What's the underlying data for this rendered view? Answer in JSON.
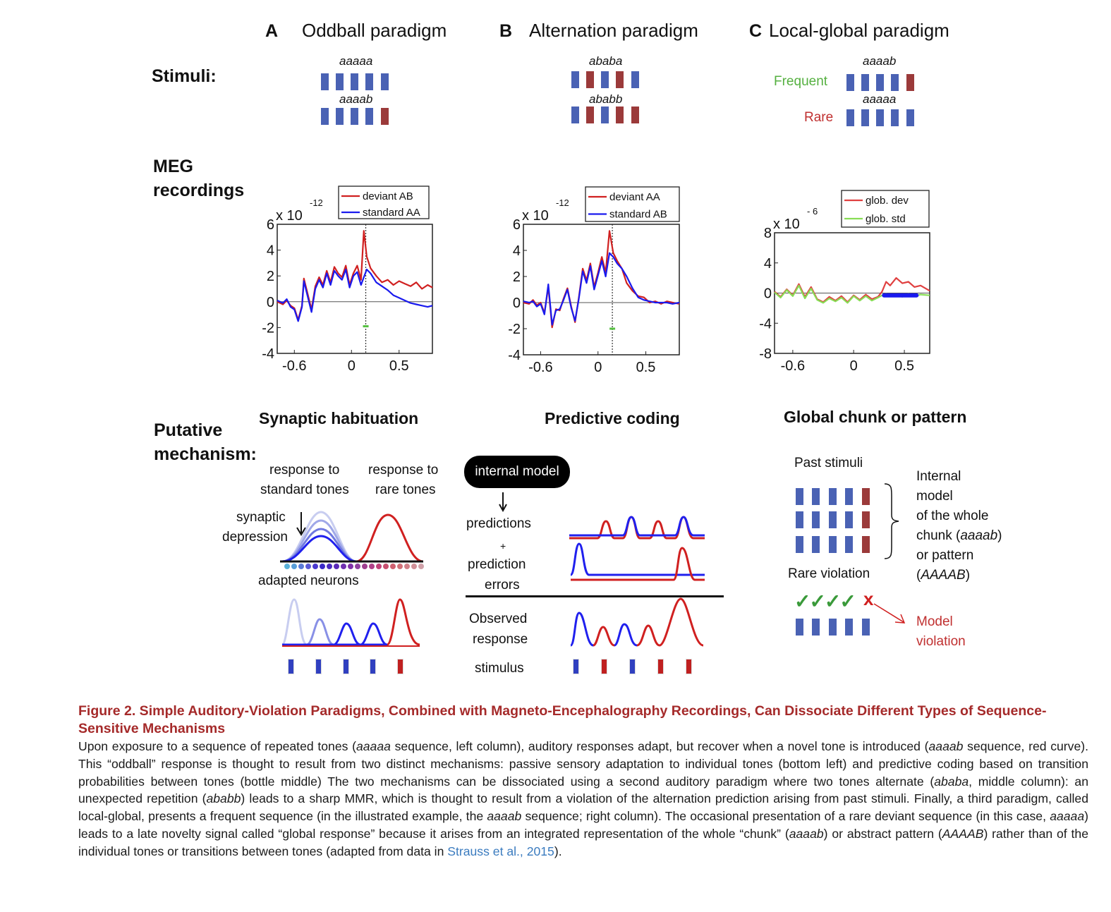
{
  "panels": {
    "A": {
      "letter": "A",
      "title": "Oddball paradigm",
      "mechanism": "Synaptic habituation"
    },
    "B": {
      "letter": "B",
      "title": "Alternation paradigm",
      "mechanism": "Predictive coding"
    },
    "C": {
      "letter": "C",
      "title": "Local-global paradigm",
      "mechanism": "Global chunk or pattern"
    }
  },
  "row_labels": {
    "stimuli": "Stimuli:",
    "meg_line1": "MEG",
    "meg_line2": "recordings",
    "mech_line1": "Putative",
    "mech_line2": "mechanism:"
  },
  "stimuli": {
    "A": [
      {
        "label": "aaaaa",
        "tones": "aaaaa"
      },
      {
        "label": "aaaab",
        "tones": "aaaab"
      }
    ],
    "B": [
      {
        "label": "ababa",
        "tones": "ababa"
      },
      {
        "label": "ababb",
        "tones": "ababb"
      }
    ],
    "C": [
      {
        "label": "aaaab",
        "tones": "aaaab",
        "freq": "Frequent"
      },
      {
        "label": "aaaaa",
        "tones": "aaaaa",
        "freq": "Rare"
      }
    ]
  },
  "colors": {
    "tone_a": "#4a62b4",
    "tone_b": "#9b3a3a",
    "red": "#d02020",
    "blue": "#1a1aee",
    "green": "#55c040",
    "caption_title": "#a52a2a",
    "link": "#3a7bbf"
  },
  "chart_data": [
    {
      "type": "line",
      "panel": "A",
      "exponent_base": "x 10",
      "exponent": "-12",
      "xticks": [
        "-0.6",
        "0",
        "0.5"
      ],
      "xtick_values": [
        -0.6,
        0,
        0.5
      ],
      "yticks": [
        "6",
        "4",
        "2",
        "0",
        "-2",
        "-4"
      ],
      "xlim": [
        -0.78,
        0.85
      ],
      "ylim": [
        -4,
        6
      ],
      "marker_x": 0.15,
      "series": [
        {
          "name": "deviant AB",
          "color": "#d02020",
          "x": [
            -0.78,
            -0.72,
            -0.68,
            -0.64,
            -0.6,
            -0.56,
            -0.52,
            -0.5,
            -0.46,
            -0.42,
            -0.38,
            -0.34,
            -0.3,
            -0.26,
            -0.22,
            -0.18,
            -0.14,
            -0.1,
            -0.06,
            -0.02,
            0.02,
            0.06,
            0.1,
            0.13,
            0.16,
            0.2,
            0.26,
            0.32,
            0.38,
            0.44,
            0.5,
            0.56,
            0.62,
            0.68,
            0.74,
            0.8,
            0.85
          ],
          "y": [
            0.0,
            -0.2,
            0.1,
            -0.3,
            -0.5,
            -1.4,
            -0.3,
            1.8,
            0.6,
            -0.6,
            1.2,
            1.9,
            1.3,
            2.4,
            1.5,
            2.7,
            2.2,
            1.9,
            2.8,
            1.3,
            2.2,
            2.8,
            1.7,
            5.5,
            3.5,
            2.6,
            2.0,
            1.5,
            1.7,
            1.3,
            1.6,
            1.4,
            1.2,
            1.5,
            1.0,
            1.3,
            1.1
          ]
        },
        {
          "name": "standard AA",
          "color": "#1a1aee",
          "x": [
            -0.78,
            -0.72,
            -0.68,
            -0.64,
            -0.6,
            -0.56,
            -0.52,
            -0.5,
            -0.46,
            -0.42,
            -0.38,
            -0.34,
            -0.3,
            -0.26,
            -0.22,
            -0.18,
            -0.14,
            -0.1,
            -0.06,
            -0.02,
            0.02,
            0.06,
            0.1,
            0.13,
            0.16,
            0.2,
            0.26,
            0.32,
            0.38,
            0.44,
            0.5,
            0.56,
            0.62,
            0.68,
            0.74,
            0.8,
            0.85
          ],
          "y": [
            0.1,
            -0.1,
            0.2,
            -0.4,
            -0.6,
            -1.5,
            -0.4,
            1.6,
            0.4,
            -0.8,
            1.0,
            1.7,
            1.1,
            2.2,
            1.3,
            2.4,
            2.0,
            1.7,
            2.5,
            1.1,
            2.0,
            2.3,
            1.3,
            1.9,
            2.5,
            2.2,
            1.5,
            1.2,
            0.9,
            0.5,
            0.3,
            0.1,
            -0.1,
            -0.2,
            -0.3,
            -0.4,
            -0.3
          ]
        }
      ],
      "green_marker_y": -1.9
    },
    {
      "type": "line",
      "panel": "B",
      "exponent_base": "x 10",
      "exponent": "-12",
      "xticks": [
        "-0.6",
        "0",
        "0.5"
      ],
      "xtick_values": [
        -0.6,
        0,
        0.5
      ],
      "yticks": [
        "6",
        "4",
        "2",
        "0",
        "-2",
        "-4"
      ],
      "xlim": [
        -0.78,
        0.85
      ],
      "ylim": [
        -4,
        6
      ],
      "marker_x": 0.15,
      "series": [
        {
          "name": "deviant AA",
          "color": "#d02020",
          "x": [
            -0.78,
            -0.72,
            -0.68,
            -0.64,
            -0.6,
            -0.56,
            -0.52,
            -0.48,
            -0.44,
            -0.4,
            -0.36,
            -0.32,
            -0.28,
            -0.24,
            -0.2,
            -0.16,
            -0.12,
            -0.08,
            -0.04,
            0.0,
            0.04,
            0.08,
            0.12,
            0.16,
            0.2,
            0.25,
            0.3,
            0.36,
            0.42,
            0.48,
            0.54,
            0.6,
            0.66,
            0.72,
            0.78,
            0.85
          ],
          "y": [
            0.0,
            -0.1,
            0.2,
            -0.2,
            0.0,
            -0.8,
            1.2,
            -1.9,
            -0.5,
            -0.6,
            0.3,
            1.1,
            -0.3,
            -1.5,
            0.4,
            2.6,
            1.7,
            3.0,
            1.2,
            2.3,
            3.5,
            2.3,
            5.5,
            3.8,
            3.2,
            2.6,
            1.5,
            0.9,
            0.5,
            0.4,
            0.0,
            0.1,
            -0.1,
            0.1,
            0.0,
            -0.1
          ]
        },
        {
          "name": "standard AB",
          "color": "#1a1aee",
          "x": [
            -0.78,
            -0.72,
            -0.68,
            -0.64,
            -0.6,
            -0.56,
            -0.52,
            -0.48,
            -0.44,
            -0.4,
            -0.36,
            -0.32,
            -0.28,
            -0.24,
            -0.2,
            -0.16,
            -0.12,
            -0.08,
            -0.04,
            0.0,
            0.04,
            0.08,
            0.12,
            0.16,
            0.2,
            0.25,
            0.3,
            0.36,
            0.42,
            0.48,
            0.54,
            0.6,
            0.66,
            0.72,
            0.78,
            0.85
          ],
          "y": [
            0.1,
            0.0,
            0.1,
            -0.3,
            -0.1,
            -0.9,
            1.4,
            -1.7,
            -0.6,
            -0.5,
            0.2,
            1.0,
            -0.4,
            -1.4,
            0.3,
            2.4,
            1.5,
            2.8,
            1.0,
            2.1,
            3.2,
            2.0,
            3.8,
            3.5,
            3.0,
            2.6,
            2.0,
            1.1,
            0.4,
            0.2,
            0.1,
            0.0,
            0.0,
            0.0,
            -0.1,
            0.0
          ]
        }
      ],
      "green_marker_y": -2.0
    },
    {
      "type": "line",
      "panel": "C",
      "exponent_base": "x 10",
      "exponent": "- 6",
      "xticks": [
        "-0.6",
        "0",
        "0.5"
      ],
      "xtick_values": [
        -0.6,
        0,
        0.5
      ],
      "yticks": [
        "8",
        "4",
        "0",
        "-4",
        "-8"
      ],
      "xlim": [
        -0.78,
        0.75
      ],
      "ylim": [
        -8,
        8
      ],
      "series": [
        {
          "name": "glob. dev",
          "color": "#e04040",
          "x": [
            -0.78,
            -0.72,
            -0.66,
            -0.6,
            -0.54,
            -0.48,
            -0.42,
            -0.36,
            -0.3,
            -0.24,
            -0.18,
            -0.12,
            -0.06,
            0.0,
            0.06,
            0.12,
            0.18,
            0.24,
            0.28,
            0.32,
            0.36,
            0.42,
            0.48,
            0.54,
            0.6,
            0.66,
            0.75
          ],
          "y": [
            0.2,
            -0.5,
            0.5,
            -0.3,
            1.2,
            -0.5,
            0.8,
            -0.8,
            -1.2,
            -0.5,
            -1.0,
            -0.4,
            -1.2,
            -0.3,
            -0.9,
            -0.2,
            -0.8,
            -0.5,
            0.2,
            1.5,
            1.0,
            2.0,
            1.3,
            1.5,
            0.8,
            1.0,
            0.3
          ]
        },
        {
          "name": "glob. std",
          "color": "#88dd55",
          "x": [
            -0.78,
            -0.72,
            -0.66,
            -0.6,
            -0.54,
            -0.48,
            -0.42,
            -0.36,
            -0.3,
            -0.24,
            -0.18,
            -0.12,
            -0.06,
            0.0,
            0.06,
            0.12,
            0.18,
            0.24,
            0.28,
            0.32,
            0.36,
            0.42,
            0.48,
            0.54,
            0.6,
            0.66,
            0.75
          ],
          "y": [
            0.1,
            -0.6,
            0.4,
            -0.4,
            1.0,
            -0.7,
            0.6,
            -0.9,
            -1.3,
            -0.7,
            -1.1,
            -0.6,
            -1.3,
            -0.4,
            -1.0,
            -0.4,
            -1.0,
            -0.6,
            -0.3,
            -0.1,
            -0.4,
            -0.2,
            -0.5,
            -0.1,
            -0.4,
            -0.2,
            -0.3
          ]
        }
      ],
      "significance_bar": {
        "x0": 0.3,
        "x1": 0.62,
        "y": -0.3
      }
    }
  ],
  "mechA": {
    "resp_standard_1": "response to",
    "resp_standard_2": "standard tones",
    "resp_rare_1": "response to",
    "resp_rare_2": "rare tones",
    "synaptic_1": "synaptic",
    "synaptic_2": "depression",
    "adapted": "adapted neurons",
    "stim_tones": "aaaab"
  },
  "mechB": {
    "internal_model": "internal model",
    "predictions": "predictions",
    "plus": "+",
    "prediction_1": "prediction",
    "prediction_2": "errors",
    "observed_1": "Observed",
    "observed_2": "response",
    "stimulus": "stimulus",
    "stim_tones": "ababb"
  },
  "mechC": {
    "past_stimuli": "Past stimuli",
    "internal_1": "Internal",
    "internal_2": "model",
    "internal_3": "of the whole",
    "internal_4a": "chunk (",
    "internal_4b": "aaaab",
    "internal_4c": ")",
    "internal_5": "or pattern",
    "internal_6a": "(",
    "internal_6b": "AAAAB",
    "internal_6c": ")",
    "rare_violation": "Rare violation",
    "checks": "✓✓✓✓",
    "cross": "x",
    "model_violation_1": "Model",
    "model_violation_2": "violation",
    "past_rows": [
      "aaaab",
      "aaaab",
      "aaaab"
    ],
    "violation_row": "aaaaa"
  },
  "caption": {
    "title": "Figure 2.  Simple Auditory-Violation Paradigms, Combined with Magneto-Encephalography Recordings, Can Dissociate Different Types of Sequence-Sensitive Mechanisms",
    "s1": "Upon exposure to a sequence of repeated tones (",
    "i1": "aaaaa",
    "s2": " sequence, left column), auditory responses adapt, but recover when a novel tone is introduced (",
    "i2": "aaaab",
    "s3": " sequence, red curve). This “oddball” response is thought to result from two distinct mechanisms: passive sensory adaptation to individual tones (bottom left) and predictive coding based on transition probabilities between tones (bottle middle) The two mechanisms can be dissociated using a second auditory paradigm where two tones alternate (",
    "i3": "ababa",
    "s4": ", middle column): an unexpected repetition (",
    "i4": "ababb",
    "s5": ") leads to a sharp MMR, which is thought to result from a violation of the alternation prediction arising from past stimuli. Finally, a third paradigm, called local-global, presents a frequent sequence (in the illustrated example, the ",
    "i5": "aaaab",
    "s6": " sequence; right column). The occasional presentation of a rare deviant sequence (in this case, ",
    "i6": "aaaaa",
    "s7": ") leads to a late novelty signal called “global response” because it arises from an integrated representation of the whole “chunk” (",
    "i7": "aaaab",
    "s8": ") or abstract pattern (",
    "i8": "AAAAB",
    "s9": ") rather than of the individual tones or transitions between tones (adapted from data in ",
    "ref": "Strauss et al., 2015",
    "s10": ")."
  }
}
